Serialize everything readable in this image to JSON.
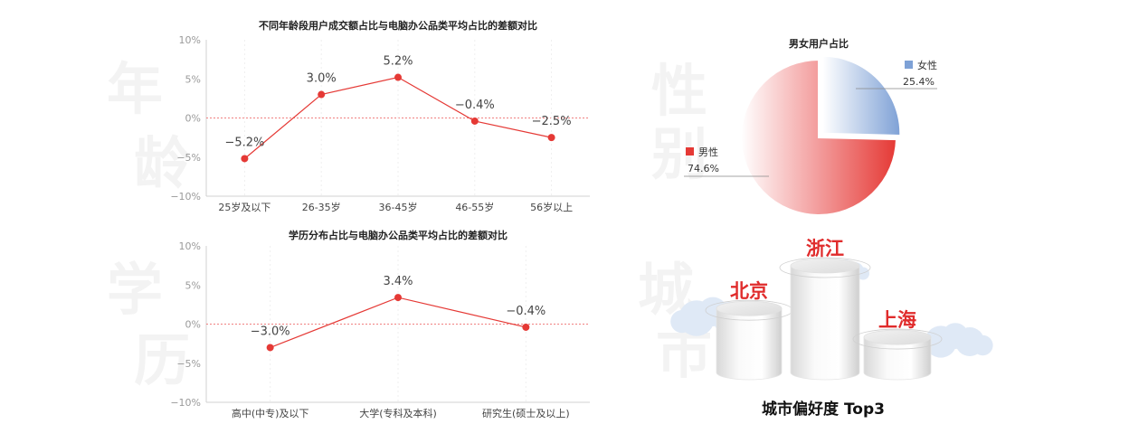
{
  "chart_data": [
    {
      "type": "line",
      "title": "不同年龄段用户成交额占比与电脑办公品类平均占比的差额对比",
      "categories": [
        "25岁及以下",
        "26-35岁",
        "36-45岁",
        "46-55岁",
        "56岁以上"
      ],
      "values": [
        -5.2,
        3.0,
        5.2,
        -0.4,
        -2.5
      ],
      "value_labels": [
        "−5.2%",
        "3.0%",
        "5.2%",
        "−0.4%",
        "−2.5%"
      ],
      "yticks": [
        "10%",
        "5%",
        "0%",
        "−5%",
        "−10%"
      ],
      "ylim": [
        -10,
        10
      ],
      "watermark": [
        "年",
        "龄"
      ],
      "colors": {
        "line": "#e53935",
        "zero": "#f08080"
      }
    },
    {
      "type": "line",
      "title": "学历分布占比与电脑办公品类平均占比的差额对比",
      "categories": [
        "高中(中专)及以下",
        "大学(专科及本科)",
        "研究生(硕士及以上)"
      ],
      "values": [
        -3.0,
        3.4,
        -0.4
      ],
      "value_labels": [
        "−3.0%",
        "3.4%",
        "−0.4%"
      ],
      "yticks": [
        "10%",
        "5%",
        "0%",
        "−5%",
        "−10%"
      ],
      "ylim": [
        -10,
        10
      ],
      "watermark": [
        "学",
        "历"
      ],
      "colors": {
        "line": "#e53935",
        "zero": "#f08080"
      }
    },
    {
      "type": "pie",
      "title": "男女用户占比",
      "slices": [
        {
          "label": "女性",
          "value": 25.4,
          "value_label": "25.4%",
          "color": "#7ea1d6"
        },
        {
          "label": "男性",
          "value": 74.6,
          "value_label": "74.6%",
          "color": "#e53935"
        }
      ],
      "watermark": [
        "性",
        "别"
      ]
    },
    {
      "type": "bar",
      "title": "城市偏好度 Top3",
      "categories": [
        "北京",
        "浙江",
        "上海"
      ],
      "ranks": [
        2,
        1,
        3
      ],
      "watermark": [
        "城",
        "市"
      ]
    }
  ]
}
